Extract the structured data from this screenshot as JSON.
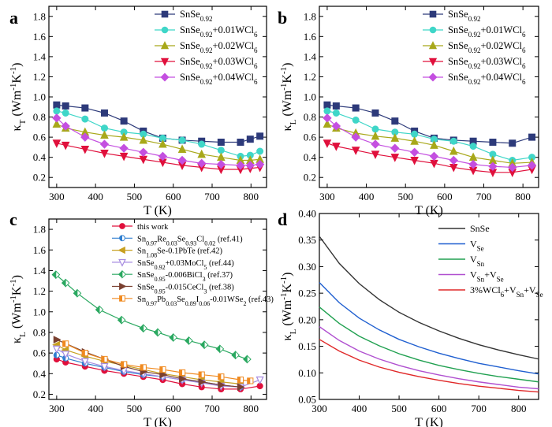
{
  "chart_data": [
    {
      "id": "a",
      "type": "line",
      "panel_label": "a",
      "xlabel": "T (K)",
      "ylabel": "κ_T (Wm⁻¹K⁻¹)",
      "ylabel_main": "κ",
      "ylabel_sub": "T",
      "ylabel_unit": " (Wm",
      "ylabel_exp1": "-1",
      "ylabel_mid": "K",
      "ylabel_exp2": "-1",
      "ylabel_end": ")",
      "xlim": [
        280,
        840
      ],
      "ylim": [
        0.1,
        1.9
      ],
      "xticks": [
        300,
        400,
        500,
        600,
        700,
        800
      ],
      "yticks": [
        0.2,
        0.4,
        0.6,
        0.8,
        1.0,
        1.2,
        1.4,
        1.6,
        1.8
      ],
      "legend_position": "top-right",
      "series": [
        {
          "name": "SnSe0.92",
          "name_parts": [
            "SnSe",
            "0.92",
            ""
          ],
          "color": "#2d3a7a",
          "marker": "square",
          "x": [
            300,
            323,
            373,
            423,
            473,
            523,
            573,
            623,
            673,
            723,
            773,
            798,
            823
          ],
          "y": [
            0.92,
            0.91,
            0.89,
            0.84,
            0.76,
            0.66,
            0.59,
            0.57,
            0.56,
            0.55,
            0.55,
            0.58,
            0.61
          ]
        },
        {
          "name": "SnSe0.92+0.01WCl6",
          "name_parts": [
            "SnSe",
            "0.92",
            "+0.01WCl",
            "6"
          ],
          "color": "#3fd6c8",
          "marker": "circle",
          "x": [
            300,
            323,
            373,
            423,
            473,
            523,
            573,
            623,
            673,
            723,
            773,
            798,
            823
          ],
          "y": [
            0.86,
            0.84,
            0.78,
            0.69,
            0.65,
            0.63,
            0.59,
            0.57,
            0.53,
            0.47,
            0.41,
            0.42,
            0.46
          ]
        },
        {
          "name": "SnSe0.92+0.02WCl6",
          "name_parts": [
            "SnSe",
            "0.92",
            "+0.02WCl",
            "6"
          ],
          "color": "#a8a81a",
          "marker": "triangle-up",
          "x": [
            300,
            323,
            373,
            423,
            473,
            523,
            573,
            623,
            673,
            723,
            773,
            798,
            823
          ],
          "y": [
            0.73,
            0.69,
            0.65,
            0.62,
            0.6,
            0.57,
            0.53,
            0.48,
            0.43,
            0.4,
            0.37,
            0.37,
            0.38
          ]
        },
        {
          "name": "SnSe0.92+0.03WCl6",
          "name_parts": [
            "SnSe",
            "0.92",
            "+0.03WCl",
            "6"
          ],
          "color": "#e0103c",
          "marker": "triangle-down",
          "x": [
            300,
            323,
            373,
            423,
            473,
            523,
            573,
            623,
            673,
            723,
            773,
            798,
            823
          ],
          "y": [
            0.54,
            0.52,
            0.48,
            0.44,
            0.41,
            0.38,
            0.35,
            0.32,
            0.3,
            0.28,
            0.28,
            0.29,
            0.3
          ]
        },
        {
          "name": "SnSe0.92+0.04WCl6",
          "name_parts": [
            "SnSe",
            "0.92",
            "+0.04WCl",
            "6"
          ],
          "color": "#c44fe0",
          "marker": "diamond",
          "x": [
            300,
            323,
            373,
            423,
            473,
            523,
            573,
            623,
            673,
            723,
            773,
            798,
            823
          ],
          "y": [
            0.79,
            0.71,
            0.6,
            0.53,
            0.49,
            0.45,
            0.41,
            0.37,
            0.34,
            0.33,
            0.32,
            0.32,
            0.33
          ]
        }
      ]
    },
    {
      "id": "b",
      "type": "line",
      "panel_label": "b",
      "xlabel": "T (K)",
      "ylabel": "κ_L (Wm⁻¹K⁻¹)",
      "ylabel_main": "κ",
      "ylabel_sub": "L",
      "ylabel_unit": " (Wm",
      "ylabel_exp1": "-1",
      "ylabel_mid": "K",
      "ylabel_exp2": "-1",
      "ylabel_end": ")",
      "xlim": [
        280,
        840
      ],
      "ylim": [
        0.1,
        1.9
      ],
      "xticks": [
        300,
        400,
        500,
        600,
        700,
        800
      ],
      "yticks": [
        0.2,
        0.4,
        0.6,
        0.8,
        1.0,
        1.2,
        1.4,
        1.6,
        1.8
      ],
      "legend_position": "top-right",
      "series": [
        {
          "name": "SnSe0.92",
          "name_parts": [
            "SnSe",
            "0.92",
            ""
          ],
          "color": "#2d3a7a",
          "marker": "square",
          "x": [
            300,
            323,
            373,
            423,
            473,
            523,
            573,
            623,
            673,
            723,
            773,
            823
          ],
          "y": [
            0.92,
            0.91,
            0.89,
            0.84,
            0.76,
            0.66,
            0.59,
            0.57,
            0.56,
            0.55,
            0.54,
            0.6
          ]
        },
        {
          "name": "SnSe0.92+0.01WCl6",
          "name_parts": [
            "SnSe",
            "0.92",
            "+0.01WCl",
            "6"
          ],
          "color": "#3fd6c8",
          "marker": "circle",
          "x": [
            300,
            323,
            373,
            423,
            473,
            523,
            573,
            623,
            673,
            723,
            773,
            823
          ],
          "y": [
            0.86,
            0.84,
            0.77,
            0.68,
            0.65,
            0.63,
            0.58,
            0.56,
            0.51,
            0.43,
            0.37,
            0.4
          ]
        },
        {
          "name": "SnSe0.92+0.02WCl6",
          "name_parts": [
            "SnSe",
            "0.92",
            "+0.02WCl",
            "6"
          ],
          "color": "#a8a81a",
          "marker": "triangle-up",
          "x": [
            300,
            323,
            373,
            423,
            473,
            523,
            573,
            623,
            673,
            723,
            773,
            823
          ],
          "y": [
            0.73,
            0.69,
            0.64,
            0.61,
            0.59,
            0.56,
            0.52,
            0.46,
            0.4,
            0.37,
            0.34,
            0.35
          ]
        },
        {
          "name": "SnSe0.92+0.03WCl6",
          "name_parts": [
            "SnSe",
            "0.92",
            "+0.03WCl",
            "6"
          ],
          "color": "#e0103c",
          "marker": "triangle-down",
          "x": [
            300,
            323,
            373,
            423,
            473,
            523,
            573,
            623,
            673,
            723,
            773,
            823
          ],
          "y": [
            0.54,
            0.51,
            0.47,
            0.43,
            0.4,
            0.37,
            0.34,
            0.3,
            0.27,
            0.25,
            0.25,
            0.28
          ]
        },
        {
          "name": "SnSe0.92+0.04WCl6",
          "name_parts": [
            "SnSe",
            "0.92",
            "+0.04WCl",
            "6"
          ],
          "color": "#c44fe0",
          "marker": "diamond",
          "x": [
            300,
            323,
            373,
            423,
            473,
            523,
            573,
            623,
            673,
            723,
            773,
            823
          ],
          "y": [
            0.79,
            0.71,
            0.6,
            0.53,
            0.49,
            0.45,
            0.41,
            0.37,
            0.33,
            0.31,
            0.3,
            0.32
          ]
        }
      ]
    },
    {
      "id": "c",
      "type": "line",
      "panel_label": "c",
      "xlabel": "T (K)",
      "ylabel": "κ_L (Wm⁻¹K⁻¹)",
      "ylabel_main": "κ",
      "ylabel_sub": "L",
      "ylabel_unit": " (Wm",
      "ylabel_exp1": "-1",
      "ylabel_mid": "K",
      "ylabel_exp2": "-1",
      "ylabel_end": ")",
      "xlim": [
        280,
        840
      ],
      "ylim": [
        0.15,
        1.9
      ],
      "xticks": [
        300,
        400,
        500,
        600,
        700,
        800
      ],
      "yticks": [
        0.2,
        0.4,
        0.6,
        0.8,
        1.0,
        1.2,
        1.4,
        1.6,
        1.8
      ],
      "legend_position": "top-right",
      "series": [
        {
          "name": "this work",
          "name_parts": [
            "this work"
          ],
          "color": "#e0103c",
          "marker": "circle",
          "x": [
            300,
            323,
            373,
            423,
            473,
            523,
            573,
            623,
            673,
            723,
            773,
            823
          ],
          "y": [
            0.54,
            0.51,
            0.47,
            0.43,
            0.4,
            0.37,
            0.34,
            0.3,
            0.27,
            0.25,
            0.25,
            0.28
          ]
        },
        {
          "name": "Sn0.97Re0.03Se0.93Cl0.02 (ref.41)",
          "name_parts": [
            "Sn",
            "0.97",
            "Re",
            "0.03",
            "Se",
            "0.93",
            "Cl",
            "0.02",
            " (ref.41)"
          ],
          "color": "#2f7fd0",
          "marker": "circle-half",
          "x": [
            300,
            323,
            373,
            423,
            473,
            523,
            573,
            623,
            673,
            723,
            773
          ],
          "y": [
            0.58,
            0.55,
            0.5,
            0.46,
            0.42,
            0.39,
            0.37,
            0.34,
            0.32,
            0.29,
            0.27
          ]
        },
        {
          "name": "Sn1.08Se-0.1PbTe (ref.42)",
          "name_parts": [
            "Sn",
            "1.08",
            "Se-0.1PbTe (ref.42)"
          ],
          "color": "#c8a020",
          "marker": "triangle-left",
          "x": [
            300,
            323,
            373,
            423,
            473,
            523,
            573,
            623,
            673,
            723,
            773
          ],
          "y": [
            0.68,
            0.63,
            0.57,
            0.52,
            0.48,
            0.44,
            0.4,
            0.37,
            0.34,
            0.32,
            0.3
          ]
        },
        {
          "name": "SnSe0.92+0.03MoCl5 (ref.44)",
          "name_parts": [
            "SnSe",
            "0.92",
            "+0.03MoCl",
            "5",
            " (ref.44)"
          ],
          "color": "#a68be0",
          "marker": "triangle-down-open",
          "x": [
            300,
            323,
            373,
            423,
            473,
            523,
            573,
            623,
            673,
            723,
            773,
            823
          ],
          "y": [
            0.64,
            0.59,
            0.52,
            0.47,
            0.43,
            0.4,
            0.37,
            0.34,
            0.31,
            0.28,
            0.27,
            0.34
          ]
        },
        {
          "name": "SnSe0.95-0.006BiCl3 (ref.37)",
          "name_parts": [
            "SnSe",
            "0.95",
            "-0.006BiCl",
            "3",
            " (ref.37)"
          ],
          "color": "#2aa860",
          "marker": "diamond-half",
          "x": [
            298,
            323,
            353,
            410,
            467,
            523,
            560,
            600,
            640,
            680,
            720,
            760,
            790
          ],
          "y": [
            1.36,
            1.28,
            1.18,
            1.02,
            0.92,
            0.84,
            0.8,
            0.75,
            0.72,
            0.68,
            0.64,
            0.58,
            0.54
          ]
        },
        {
          "name": "SnSe0.95-0.015CeCl3 (ref.38)",
          "name_parts": [
            "SnSe",
            "0.95",
            "-0.015CeCl",
            "3",
            " (ref.38)"
          ],
          "color": "#7a4030",
          "marker": "triangle-right",
          "x": [
            300,
            373,
            423,
            473,
            523,
            573,
            623,
            673,
            723,
            773
          ],
          "y": [
            0.73,
            0.61,
            0.54,
            0.47,
            0.42,
            0.39,
            0.35,
            0.32,
            0.29,
            0.27
          ]
        },
        {
          "name": "Sn0.97Pb0.03Se0.89I0.06-0.01WSe2 (ref.43)",
          "name_parts": [
            "Sn",
            "0.97",
            "Pb",
            "0.03",
            "Se",
            "0.89",
            "I",
            "0.06",
            "-0.01WSe",
            "2",
            " (ref.43)"
          ],
          "color": "#f08a20",
          "marker": "square-half",
          "x": [
            323,
            373,
            423,
            473,
            523,
            573,
            623,
            673,
            723,
            773,
            798
          ],
          "y": [
            0.69,
            0.6,
            0.54,
            0.49,
            0.46,
            0.44,
            0.41,
            0.39,
            0.37,
            0.34,
            0.33
          ]
        }
      ]
    },
    {
      "id": "d",
      "type": "line",
      "panel_label": "d",
      "xlabel": "T (K)",
      "ylabel": "κ_L (Wm⁻¹K⁻¹)",
      "ylabel_main": "κ",
      "ylabel_sub": "L",
      "ylabel_unit": " (Wm",
      "ylabel_exp1": "-1",
      "ylabel_mid": "K",
      "ylabel_exp2": "-1",
      "ylabel_end": ")",
      "xlim": [
        300,
        850
      ],
      "ylim": [
        0.05,
        0.4
      ],
      "xticks": [
        300,
        400,
        500,
        600,
        700,
        800
      ],
      "yticks": [
        0.05,
        0.1,
        0.15,
        0.2,
        0.25,
        0.3,
        0.35,
        0.4
      ],
      "ytick_labels": [
        "0.05",
        "0.10",
        "0.15",
        "0.20",
        "0.25",
        "0.30",
        "0.35",
        "0.40"
      ],
      "legend_position": "top-right",
      "series": [
        {
          "name": "SnSe",
          "name_parts": [
            "SnSe"
          ],
          "color": "#333333",
          "marker": "none",
          "x": [
            300,
            350,
            400,
            450,
            500,
            550,
            600,
            650,
            700,
            750,
            800,
            850
          ],
          "y": [
            0.357,
            0.306,
            0.268,
            0.238,
            0.214,
            0.195,
            0.179,
            0.165,
            0.153,
            0.143,
            0.134,
            0.126
          ]
        },
        {
          "name": "VSe",
          "name_parts": [
            "V",
            "Se"
          ],
          "color": "#1f5fd0",
          "marker": "none",
          "x": [
            300,
            350,
            400,
            450,
            500,
            550,
            600,
            650,
            700,
            750,
            800,
            850
          ],
          "y": [
            0.27,
            0.232,
            0.203,
            0.181,
            0.163,
            0.149,
            0.137,
            0.127,
            0.118,
            0.111,
            0.104,
            0.098
          ]
        },
        {
          "name": "VSn",
          "name_parts": [
            "V",
            "Sn"
          ],
          "color": "#20a050",
          "marker": "none",
          "x": [
            300,
            350,
            400,
            450,
            500,
            550,
            600,
            650,
            700,
            750,
            800,
            850
          ],
          "y": [
            0.224,
            0.193,
            0.169,
            0.151,
            0.136,
            0.124,
            0.114,
            0.106,
            0.099,
            0.093,
            0.088,
            0.083
          ]
        },
        {
          "name": "VSn+VSe",
          "name_parts": [
            "V",
            "Sn",
            "+V",
            "Se"
          ],
          "color": "#b050d0",
          "marker": "none",
          "x": [
            300,
            350,
            400,
            450,
            500,
            550,
            600,
            650,
            700,
            750,
            800,
            850
          ],
          "y": [
            0.187,
            0.161,
            0.141,
            0.126,
            0.114,
            0.104,
            0.096,
            0.089,
            0.083,
            0.078,
            0.073,
            0.07
          ]
        },
        {
          "name": "3%WCl6+VSn+VSe",
          "name_parts": [
            "3%WCl",
            "6",
            "+V",
            "Sn",
            "+V",
            "Se"
          ],
          "color": "#e02828",
          "marker": "none",
          "x": [
            300,
            350,
            400,
            450,
            500,
            550,
            600,
            650,
            700,
            750,
            800,
            850
          ],
          "y": [
            0.163,
            0.141,
            0.124,
            0.111,
            0.101,
            0.093,
            0.086,
            0.08,
            0.075,
            0.071,
            0.067,
            0.064
          ]
        }
      ]
    }
  ]
}
